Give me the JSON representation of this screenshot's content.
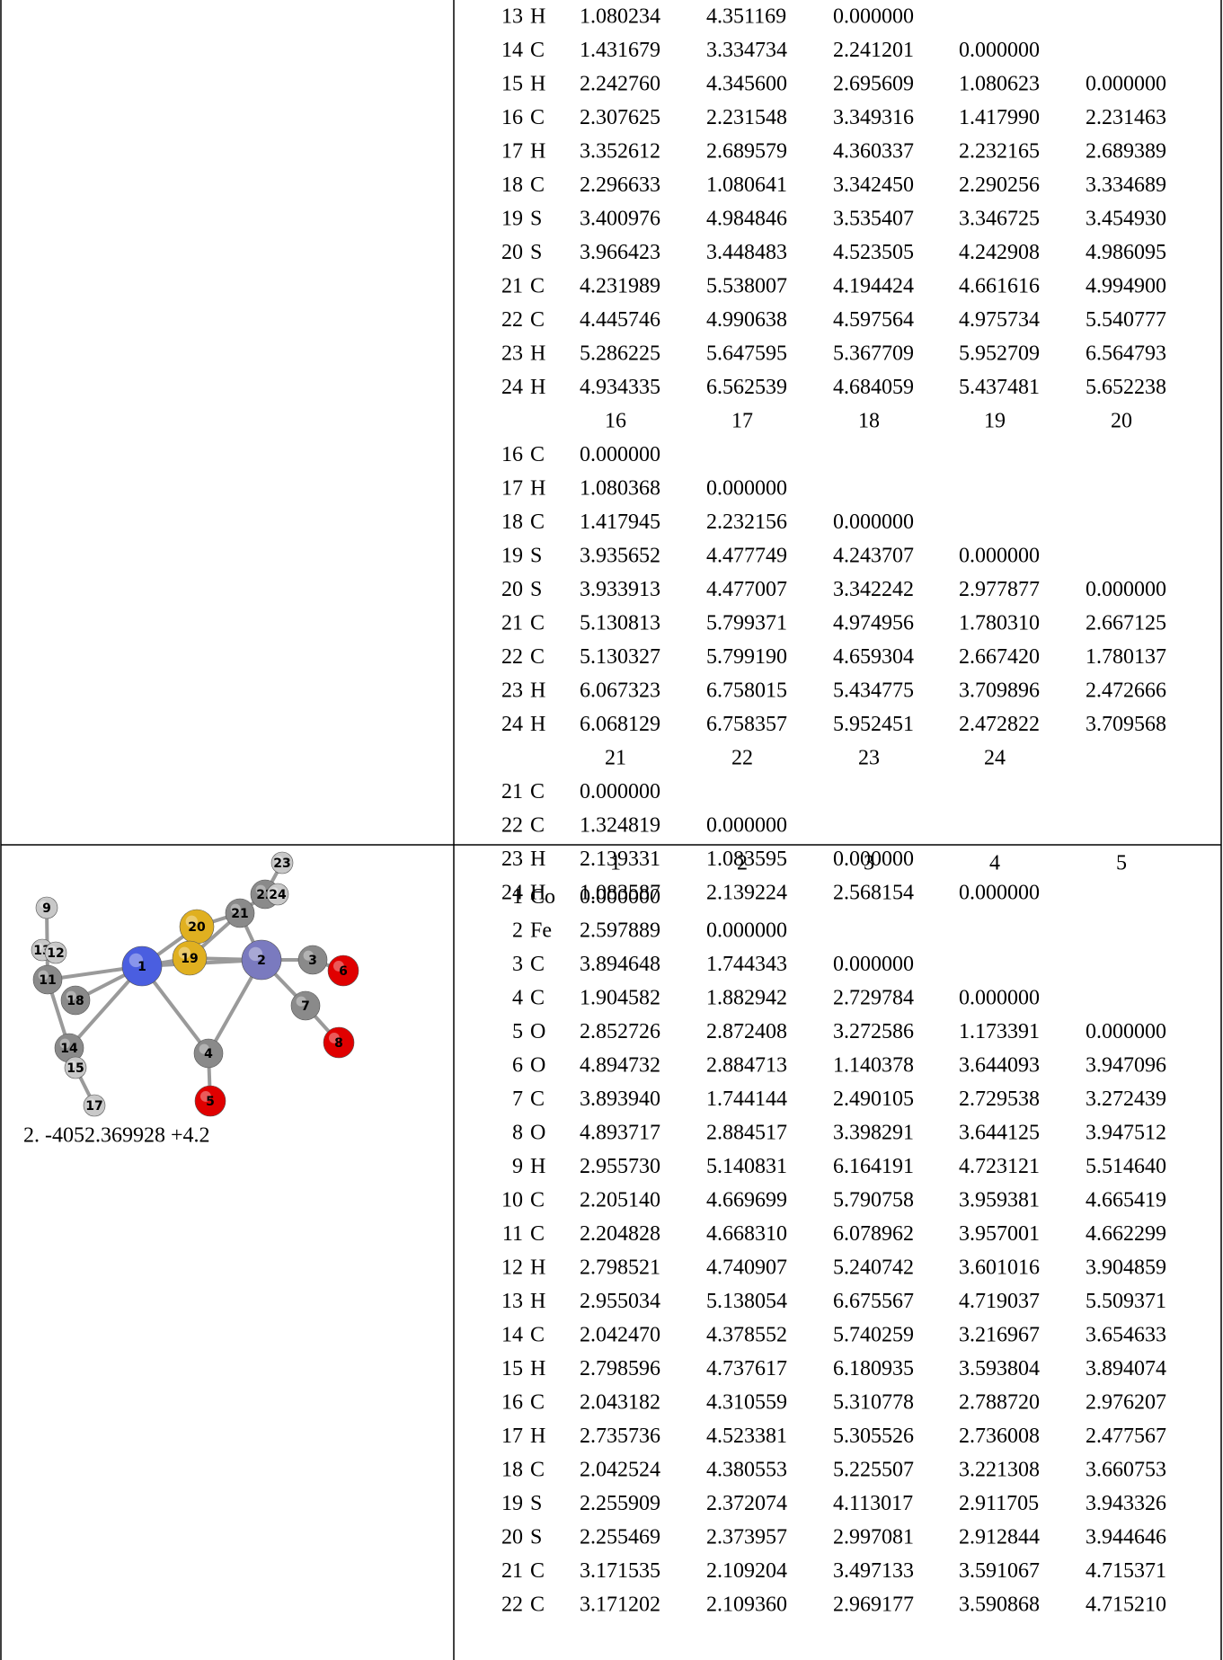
{
  "top_cell": {
    "lines": [
      {
        "n": "13",
        "el": "H",
        "values": [
          "1.080234",
          "4.351169",
          "0.000000"
        ]
      },
      {
        "n": "14",
        "el": "C",
        "values": [
          "1.431679",
          "3.334734",
          "2.241201",
          "0.000000"
        ]
      },
      {
        "n": "15",
        "el": "H",
        "values": [
          "2.242760",
          "4.345600",
          "2.695609",
          "1.080623",
          "0.000000"
        ]
      },
      {
        "n": "16",
        "el": "C",
        "values": [
          "2.307625",
          "2.231548",
          "3.349316",
          "1.417990",
          "2.231463"
        ]
      },
      {
        "n": "17",
        "el": "H",
        "values": [
          "3.352612",
          "2.689579",
          "4.360337",
          "2.232165",
          "2.689389"
        ]
      },
      {
        "n": "18",
        "el": "C",
        "values": [
          "2.296633",
          "1.080641",
          "3.342450",
          "2.290256",
          "3.334689"
        ]
      },
      {
        "n": "19",
        "el": "S",
        "values": [
          "3.400976",
          "4.984846",
          "3.535407",
          "3.346725",
          "3.454930"
        ]
      },
      {
        "n": "20",
        "el": "S",
        "values": [
          "3.966423",
          "3.448483",
          "4.523505",
          "4.242908",
          "4.986095"
        ]
      },
      {
        "n": "21",
        "el": "C",
        "values": [
          "4.231989",
          "5.538007",
          "4.194424",
          "4.661616",
          "4.994900"
        ]
      },
      {
        "n": "22",
        "el": "C",
        "values": [
          "4.445746",
          "4.990638",
          "4.597564",
          "4.975734",
          "5.540777"
        ]
      },
      {
        "n": "23",
        "el": "H",
        "values": [
          "5.286225",
          "5.647595",
          "5.367709",
          "5.952709",
          "6.564793"
        ]
      },
      {
        "n": "24",
        "el": "H",
        "values": [
          "4.934335",
          "6.562539",
          "4.684059",
          "5.437481",
          "5.652238"
        ]
      },
      {
        "cols": [
          "16",
          "17",
          "18",
          "19",
          "20"
        ]
      },
      {
        "n": "16",
        "el": "C",
        "values": [
          "0.000000"
        ]
      },
      {
        "n": "17",
        "el": "H",
        "values": [
          "1.080368",
          "0.000000"
        ]
      },
      {
        "n": "18",
        "el": "C",
        "values": [
          "1.417945",
          "2.232156",
          "0.000000"
        ]
      },
      {
        "n": "19",
        "el": "S",
        "values": [
          "3.935652",
          "4.477749",
          "4.243707",
          "0.000000"
        ]
      },
      {
        "n": "20",
        "el": "S",
        "values": [
          "3.933913",
          "4.477007",
          "3.342242",
          "2.977877",
          "0.000000"
        ]
      },
      {
        "n": "21",
        "el": "C",
        "values": [
          "5.130813",
          "5.799371",
          "4.974956",
          "1.780310",
          "2.667125"
        ]
      },
      {
        "n": "22",
        "el": "C",
        "values": [
          "5.130327",
          "5.799190",
          "4.659304",
          "2.667420",
          "1.780137"
        ]
      },
      {
        "n": "23",
        "el": "H",
        "values": [
          "6.067323",
          "6.758015",
          "5.434775",
          "3.709896",
          "2.472666"
        ]
      },
      {
        "n": "24",
        "el": "H",
        "values": [
          "6.068129",
          "6.758357",
          "5.952451",
          "2.472822",
          "3.709568"
        ]
      },
      {
        "cols": [
          "21",
          "22",
          "23",
          "24"
        ]
      },
      {
        "n": "21",
        "el": "C",
        "values": [
          "0.000000"
        ]
      },
      {
        "n": "22",
        "el": "C",
        "values": [
          "1.324819",
          "0.000000"
        ]
      },
      {
        "n": "23",
        "el": "H",
        "values": [
          "2.139331",
          "1.083595",
          "0.000000"
        ]
      },
      {
        "n": "24",
        "el": "H",
        "values": [
          "1.083587",
          "2.139224",
          "2.568154",
          "0.000000"
        ]
      }
    ]
  },
  "bottom_cell": {
    "caption": "2. -4052.369928 +4.2",
    "atoms": [
      "23",
      "22",
      "24",
      "9",
      "21",
      "20",
      "13",
      "12",
      "11",
      "19",
      "18",
      "14",
      "15",
      "17",
      "1",
      "2",
      "4",
      "3",
      "7",
      "6",
      "8",
      "5"
    ],
    "lines": [
      {
        "cols": [
          "1",
          "2",
          "3",
          "4",
          "5"
        ]
      },
      {
        "n": "1",
        "el": "Co",
        "values": [
          "0.000000"
        ]
      },
      {
        "n": "2",
        "el": "Fe",
        "values": [
          "2.597889",
          "0.000000"
        ]
      },
      {
        "n": "3",
        "el": "C",
        "values": [
          "3.894648",
          "1.744343",
          "0.000000"
        ]
      },
      {
        "n": "4",
        "el": "C",
        "values": [
          "1.904582",
          "1.882942",
          "2.729784",
          "0.000000"
        ]
      },
      {
        "n": "5",
        "el": "O",
        "values": [
          "2.852726",
          "2.872408",
          "3.272586",
          "1.173391",
          "0.000000"
        ]
      },
      {
        "n": "6",
        "el": "O",
        "values": [
          "4.894732",
          "2.884713",
          "1.140378",
          "3.644093",
          "3.947096"
        ]
      },
      {
        "n": "7",
        "el": "C",
        "values": [
          "3.893940",
          "1.744144",
          "2.490105",
          "2.729538",
          "3.272439"
        ]
      },
      {
        "n": "8",
        "el": "O",
        "values": [
          "4.893717",
          "2.884517",
          "3.398291",
          "3.644125",
          "3.947512"
        ]
      },
      {
        "n": "9",
        "el": "H",
        "values": [
          "2.955730",
          "5.140831",
          "6.164191",
          "4.723121",
          "5.514640"
        ]
      },
      {
        "n": "10",
        "el": "C",
        "values": [
          "2.205140",
          "4.669699",
          "5.790758",
          "3.959381",
          "4.665419"
        ]
      },
      {
        "n": "11",
        "el": "C",
        "values": [
          "2.204828",
          "4.668310",
          "6.078962",
          "3.957001",
          "4.662299"
        ]
      },
      {
        "n": "12",
        "el": "H",
        "values": [
          "2.798521",
          "4.740907",
          "5.240742",
          "3.601016",
          "3.904859"
        ]
      },
      {
        "n": "13",
        "el": "H",
        "values": [
          "2.955034",
          "5.138054",
          "6.675567",
          "4.719037",
          "5.509371"
        ]
      },
      {
        "n": "14",
        "el": "C",
        "values": [
          "2.042470",
          "4.378552",
          "5.740259",
          "3.216967",
          "3.654633"
        ]
      },
      {
        "n": "15",
        "el": "H",
        "values": [
          "2.798596",
          "4.737617",
          "6.180935",
          "3.593804",
          "3.894074"
        ]
      },
      {
        "n": "16",
        "el": "C",
        "values": [
          "2.043182",
          "4.310559",
          "5.310778",
          "2.788720",
          "2.976207"
        ]
      },
      {
        "n": "17",
        "el": "H",
        "values": [
          "2.735736",
          "4.523381",
          "5.305526",
          "2.736008",
          "2.477567"
        ]
      },
      {
        "n": "18",
        "el": "C",
        "values": [
          "2.042524",
          "4.380553",
          "5.225507",
          "3.221308",
          "3.660753"
        ]
      },
      {
        "n": "19",
        "el": "S",
        "values": [
          "2.255909",
          "2.372074",
          "4.113017",
          "2.911705",
          "3.943326"
        ]
      },
      {
        "n": "20",
        "el": "S",
        "values": [
          "2.255469",
          "2.373957",
          "2.997081",
          "2.912844",
          "3.944646"
        ]
      },
      {
        "n": "21",
        "el": "C",
        "values": [
          "3.171535",
          "2.109204",
          "3.497133",
          "3.591067",
          "4.715371"
        ]
      },
      {
        "n": "22",
        "el": "C",
        "values": [
          "3.171202",
          "2.109360",
          "2.969177",
          "3.590868",
          "4.715210"
        ]
      }
    ]
  }
}
